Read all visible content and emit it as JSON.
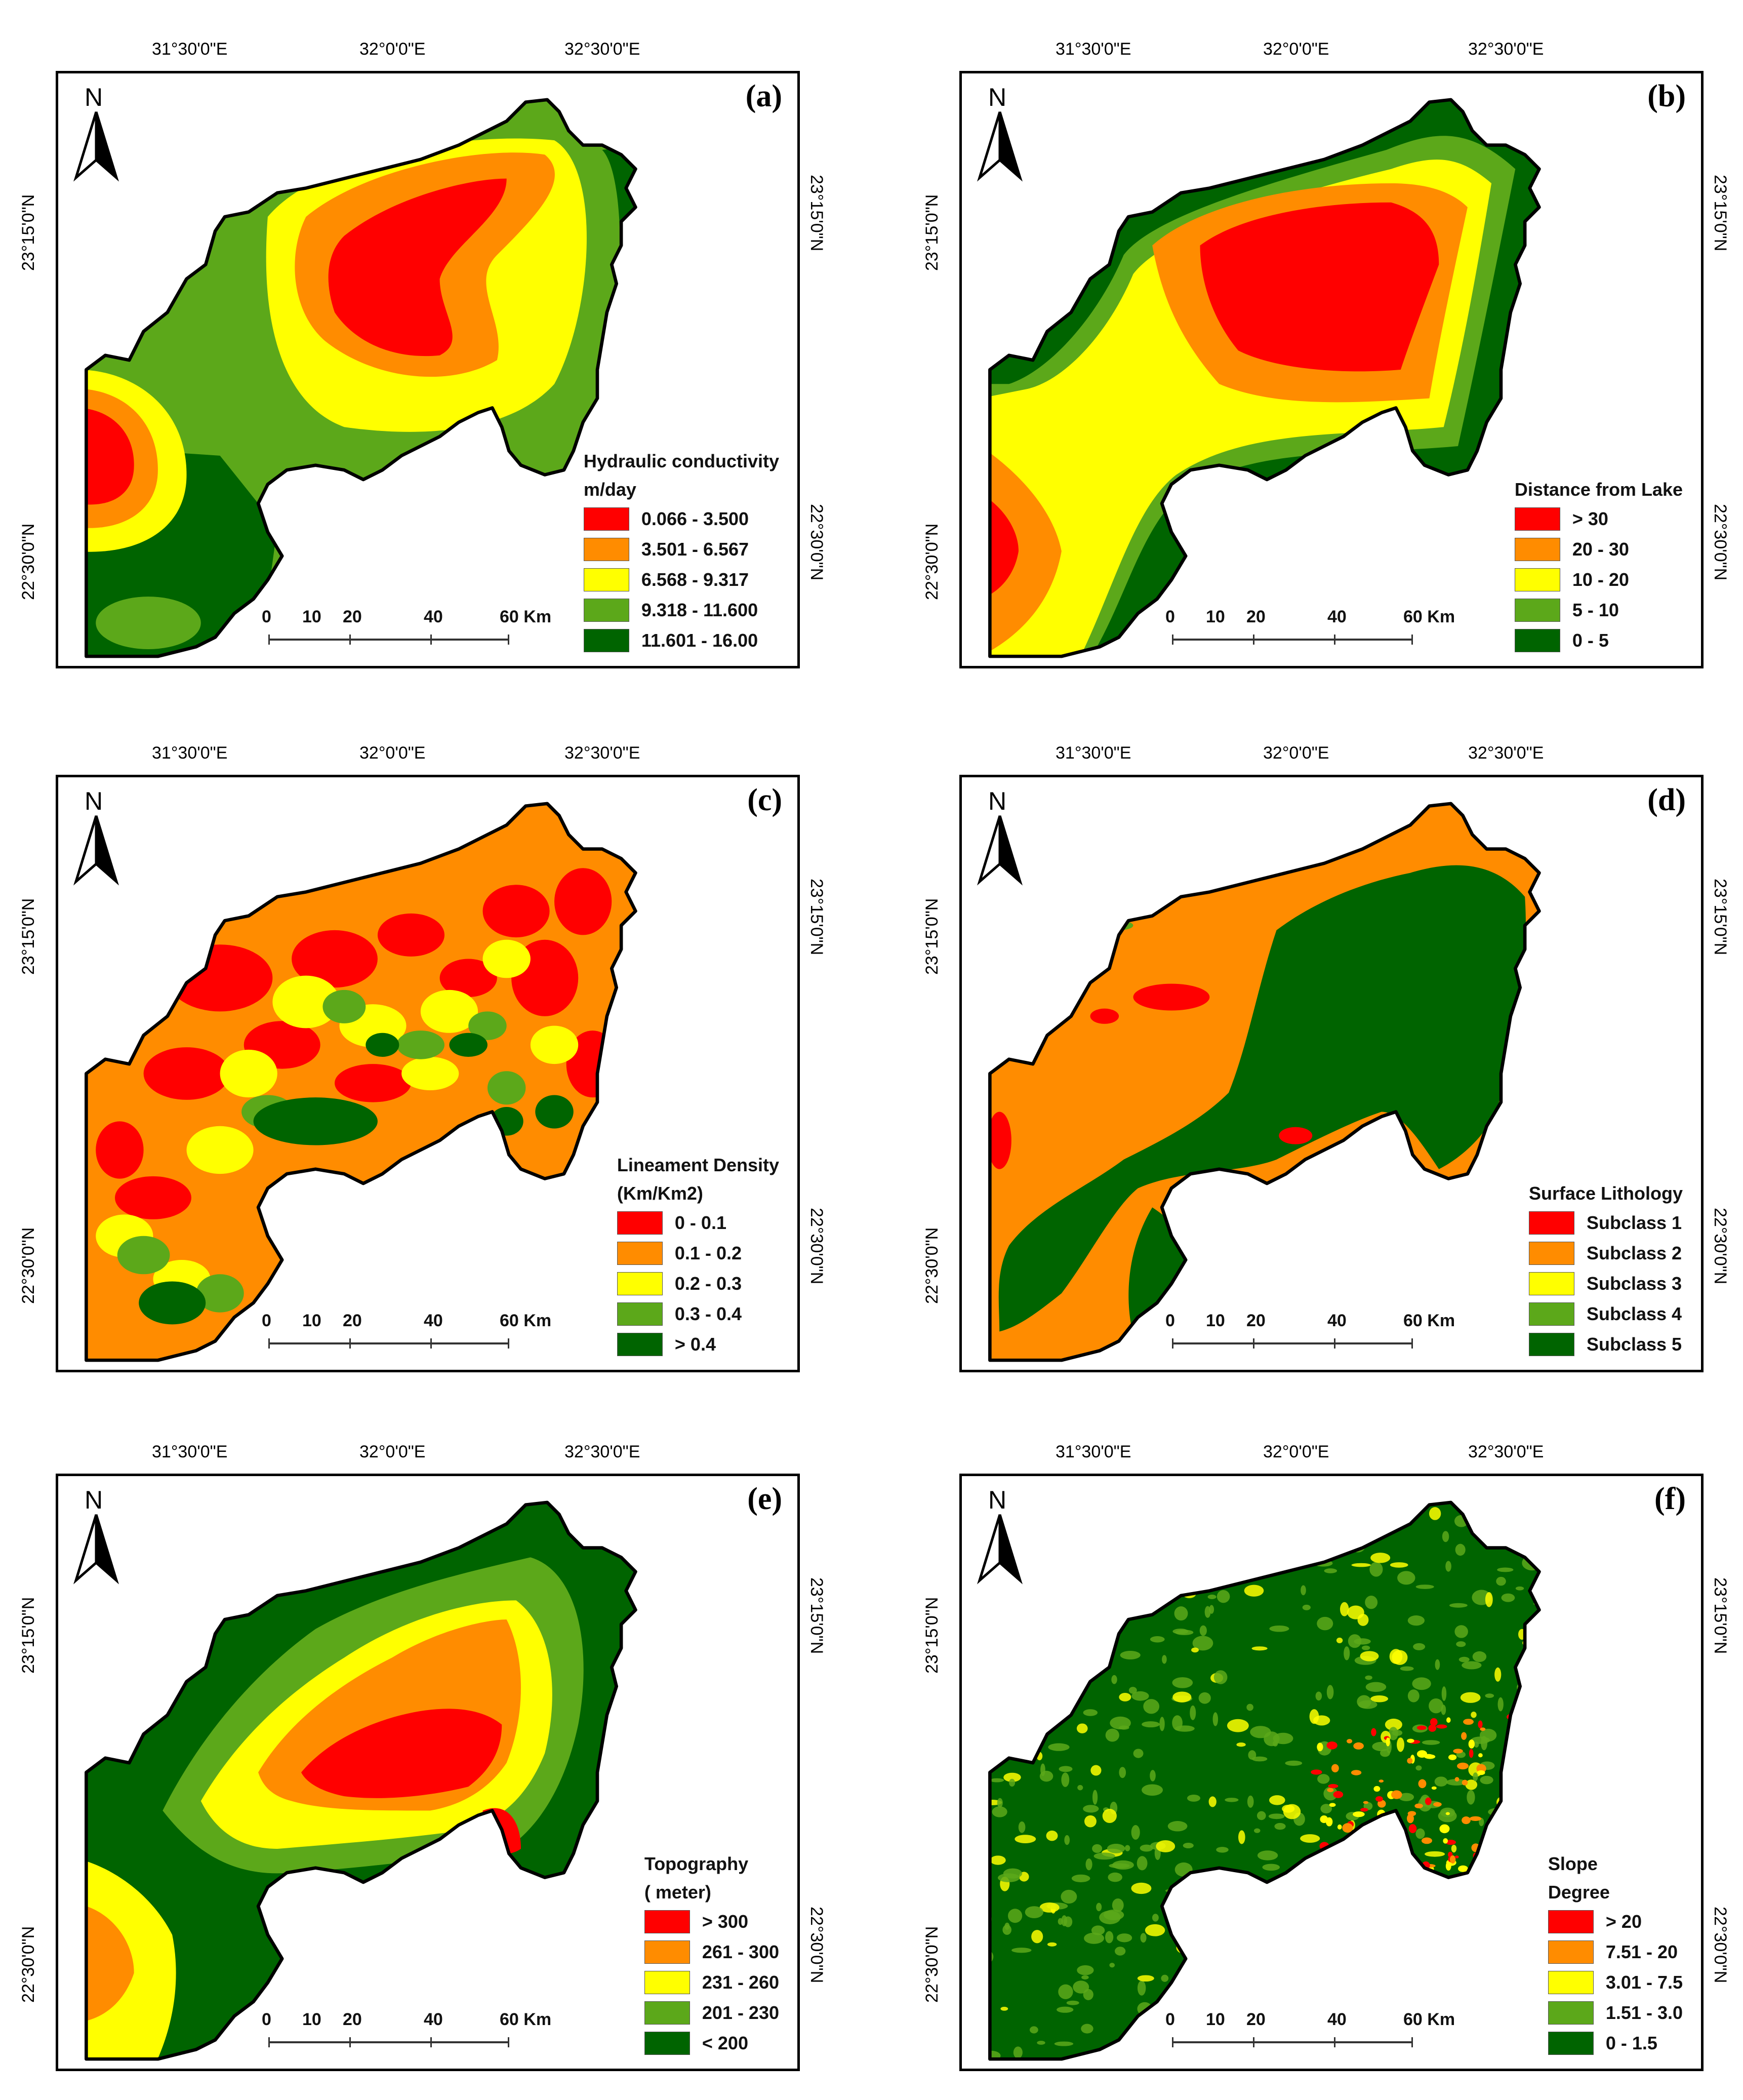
{
  "lon_ticks": [
    "31°30'0\"E",
    "32°0'0\"E",
    "32°30'0\"E"
  ],
  "lat_ticks": [
    "23°15'0\"N",
    "22°30'0\"N"
  ],
  "north_label": "N",
  "scale": {
    "labels": [
      "0",
      "10",
      "20",
      "40",
      "60 Km"
    ]
  },
  "colors": {
    "red": "#ff0000",
    "orange": "#ff8c00",
    "yellow": "#ffff00",
    "lightgreen": "#5ca81a",
    "darkgreen": "#006400"
  },
  "panels": [
    {
      "id": "a",
      "label": "(a)",
      "legend_title": "Hydraulic conductivity",
      "legend_subtitle": "m/day",
      "classes": [
        "0.066 - 3.500",
        "3.501 - 6.567",
        "6.568 - 9.317",
        "9.318 - 11.600",
        "11.601 - 16.00"
      ]
    },
    {
      "id": "b",
      "label": "(b)",
      "legend_title": "Distance from Lake",
      "legend_subtitle": "",
      "classes": [
        "> 30",
        "20 - 30",
        "10 - 20",
        "5 - 10",
        "0 - 5"
      ]
    },
    {
      "id": "c",
      "label": "(c)",
      "legend_title": "Lineament Density",
      "legend_subtitle": "(Km/Km2)",
      "classes": [
        "0 - 0.1",
        "0.1 - 0.2",
        "0.2 - 0.3",
        "0.3 - 0.4",
        "> 0.4"
      ]
    },
    {
      "id": "d",
      "label": "(d)",
      "legend_title": "Surface Lithology",
      "legend_subtitle": "",
      "classes": [
        "Subclass 1",
        "Subclass 2",
        "Subclass 3",
        "Subclass 4",
        "Subclass 5"
      ]
    },
    {
      "id": "e",
      "label": "(e)",
      "legend_title": "Topography",
      "legend_subtitle": "( meter)",
      "classes": [
        "> 300",
        "261 - 300",
        "231 - 260",
        "201 - 230",
        "< 200"
      ]
    },
    {
      "id": "f",
      "label": "(f)",
      "legend_title": "Slope",
      "legend_subtitle": "Degree",
      "classes": [
        "> 20",
        "7.51 - 20",
        "3.01 - 7.5",
        "1.51 - 3.0",
        "0 - 1.5"
      ]
    }
  ]
}
